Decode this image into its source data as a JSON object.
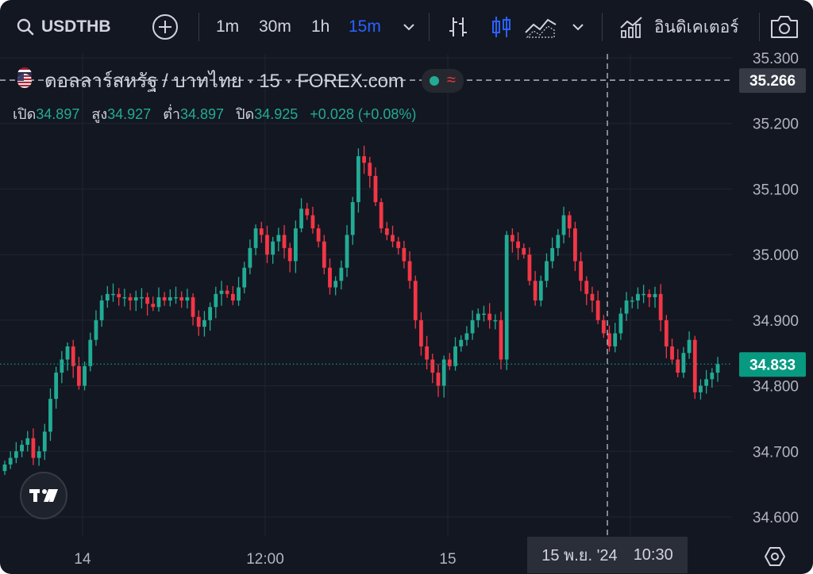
{
  "toolbar": {
    "symbol": "USDTHB",
    "timeframes": [
      "1m",
      "30m",
      "1h",
      "15m"
    ],
    "active_timeframe": "15m",
    "indicators_label": "อินดิเคเตอร์",
    "icons": [
      "search-icon",
      "add-symbol-icon",
      "chevron-down-icon",
      "bar-style-icon",
      "candle-style-icon",
      "area-style-icon",
      "indicators-icon",
      "camera-icon"
    ]
  },
  "legend": {
    "title": "ดอลลาร์สหรัฐ / บาทไทย · 15 · FOREX.com",
    "open_label": "เปิด",
    "open": "34.897",
    "high_label": "สูง",
    "high": "34.927",
    "low_label": "ต่ำ",
    "low": "34.897",
    "close_label": "ปิด",
    "close": "34.925",
    "change": "+0.028 (+0.08%)",
    "status_symbol": "≈"
  },
  "crosshair": {
    "price": "35.266",
    "date": "15 พ.ย. '24",
    "time": "10:30"
  },
  "last_price": "34.833",
  "colors": {
    "background": "#131722",
    "up": "#22ab94",
    "down": "#f23645",
    "last_price": "#089981",
    "active": "#2962ff",
    "crosshair_label": "#363a45"
  },
  "chart_data": {
    "type": "candlestick",
    "symbol": "USDTHB",
    "interval": "15",
    "y_ticks": [
      35.3,
      35.2,
      35.1,
      35.0,
      34.9,
      34.8,
      34.7,
      34.6
    ],
    "y_tick_labels": [
      "35.300",
      "35.200",
      "35.100",
      "35.000",
      "34.900",
      "34.800",
      "34.700",
      "34.600"
    ],
    "ylim": [
      34.57,
      35.31
    ],
    "x_tick_labels": [
      "14",
      "12:00",
      "15"
    ],
    "grid": true,
    "close_series": [
      34.68,
      34.69,
      34.7,
      34.71,
      34.72,
      34.69,
      34.7,
      34.73,
      34.78,
      34.82,
      34.84,
      34.86,
      34.83,
      34.8,
      34.83,
      34.87,
      34.9,
      34.93,
      34.94,
      34.94,
      34.935,
      34.935,
      34.93,
      34.935,
      34.935,
      34.925,
      34.92,
      34.935,
      34.93,
      34.935,
      34.935,
      34.93,
      34.935,
      34.905,
      34.89,
      34.9,
      34.92,
      34.94,
      34.945,
      34.94,
      34.93,
      34.95,
      34.98,
      35.01,
      35.04,
      35.03,
      35.0,
      35.02,
      35.03,
      35.01,
      34.99,
      35.04,
      35.07,
      35.06,
      35.04,
      35.02,
      34.98,
      34.95,
      34.96,
      34.98,
      35.03,
      35.08,
      35.15,
      35.14,
      35.12,
      35.08,
      35.04,
      35.03,
      35.02,
      35.01,
      34.99,
      34.96,
      34.9,
      34.86,
      34.84,
      34.82,
      34.8,
      34.84,
      34.83,
      34.86,
      34.87,
      34.88,
      34.9,
      34.91,
      34.91,
      34.9,
      34.9,
      34.84,
      35.03,
      35.02,
      35.01,
      35.0,
      34.96,
      34.93,
      34.96,
      34.99,
      35.01,
      35.03,
      35.06,
      35.04,
      34.99,
      34.96,
      34.94,
      34.93,
      34.9,
      34.88,
      34.86,
      34.88,
      34.91,
      34.93,
      34.93,
      34.94,
      34.94,
      34.935,
      34.94,
      34.9,
      34.86,
      34.84,
      34.82,
      34.85,
      34.87,
      34.79,
      34.8,
      34.81,
      34.82,
      34.833
    ]
  }
}
